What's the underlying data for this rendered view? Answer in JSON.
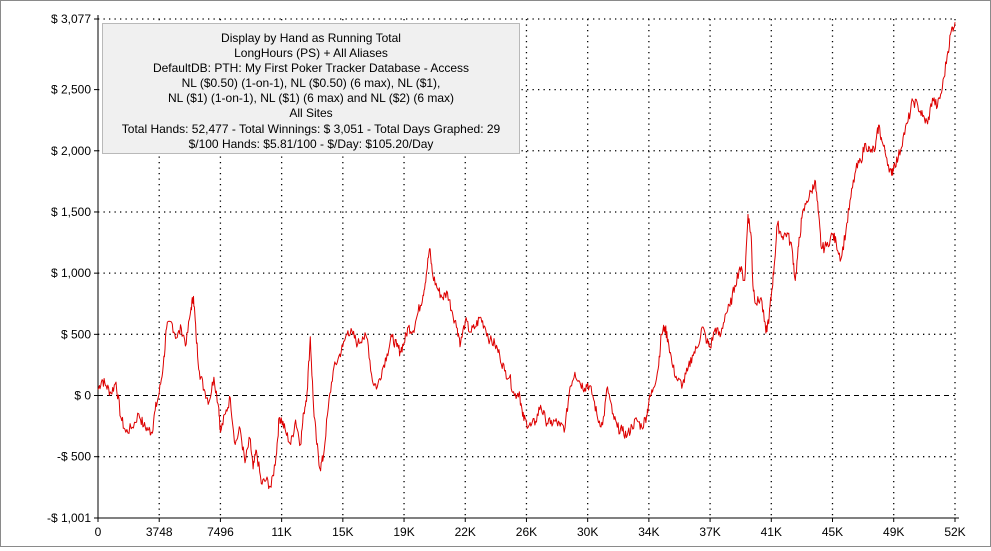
{
  "chart_data": {
    "type": "line",
    "title_lines": [
      "Display by Hand as Running Total",
      "LongHours (PS) + All Aliases",
      "DefaultDB: PTH: My First Poker Tracker Database - Access",
      "NL ($0.50) (1-on-1), NL ($0.50) (6 max), NL ($1),",
      "NL ($1) (1-on-1), NL ($1) (6 max) and NL ($2) (6 max)",
      "All Sites",
      "Total Hands: 52,477 - Total Winnings: $ 3,051 - Total Days Graphed: 29",
      "$/100 Hands: $5.81/100 - $/Day: $105.20/Day"
    ],
    "xlim": [
      0,
      52477
    ],
    "ylim": [
      -1001,
      3077
    ],
    "x_ticks": [
      {
        "value": 0,
        "label": "0"
      },
      {
        "value": 3748,
        "label": "3748"
      },
      {
        "value": 7496,
        "label": "7496"
      },
      {
        "value": 11244,
        "label": "11K"
      },
      {
        "value": 14992,
        "label": "15K"
      },
      {
        "value": 18740,
        "label": "19K"
      },
      {
        "value": 22488,
        "label": "22K"
      },
      {
        "value": 26236,
        "label": "26K"
      },
      {
        "value": 29984,
        "label": "30K"
      },
      {
        "value": 33732,
        "label": "34K"
      },
      {
        "value": 37480,
        "label": "37K"
      },
      {
        "value": 41228,
        "label": "41K"
      },
      {
        "value": 44976,
        "label": "45K"
      },
      {
        "value": 48724,
        "label": "49K"
      },
      {
        "value": 52477,
        "label": "52K"
      }
    ],
    "y_ticks": [
      {
        "value": 3077,
        "label": "$ 3,077"
      },
      {
        "value": 2500,
        "label": "$ 2,500"
      },
      {
        "value": 2000,
        "label": "$ 2,000"
      },
      {
        "value": 1500,
        "label": "$ 1,500"
      },
      {
        "value": 1000,
        "label": "$ 1,000"
      },
      {
        "value": 500,
        "label": "$ 500"
      },
      {
        "value": 0,
        "label": "$ 0"
      },
      {
        "value": -500,
        "label": "-$ 500"
      },
      {
        "value": -1001,
        "label": "-$ 1,001"
      }
    ],
    "grid": true,
    "zero_line": "dashed",
    "series": [
      {
        "color": "#dd0000",
        "points": [
          [
            0,
            50
          ],
          [
            250,
            130
          ],
          [
            500,
            80
          ],
          [
            800,
            20
          ],
          [
            1100,
            110
          ],
          [
            1400,
            -180
          ],
          [
            1700,
            -300
          ],
          [
            2100,
            -260
          ],
          [
            2500,
            -150
          ],
          [
            2800,
            -250
          ],
          [
            3100,
            -280
          ],
          [
            3300,
            -300
          ],
          [
            3500,
            -120
          ],
          [
            3748,
            20
          ],
          [
            4000,
            250
          ],
          [
            4200,
            550
          ],
          [
            4500,
            600
          ],
          [
            4800,
            470
          ],
          [
            5100,
            550
          ],
          [
            5400,
            420
          ],
          [
            5700,
            720
          ],
          [
            5850,
            810
          ],
          [
            6000,
            500
          ],
          [
            6200,
            200
          ],
          [
            6500,
            50
          ],
          [
            6800,
            -50
          ],
          [
            7100,
            150
          ],
          [
            7400,
            -100
          ],
          [
            7496,
            -300
          ],
          [
            7800,
            -150
          ],
          [
            8100,
            -20
          ],
          [
            8400,
            -400
          ],
          [
            8700,
            -270
          ],
          [
            9000,
            -550
          ],
          [
            9300,
            -350
          ],
          [
            9500,
            -600
          ],
          [
            9700,
            -450
          ],
          [
            10000,
            -720
          ],
          [
            10300,
            -690
          ],
          [
            10600,
            -750
          ],
          [
            10900,
            -500
          ],
          [
            11100,
            -180
          ],
          [
            11244,
            -200
          ],
          [
            11500,
            -300
          ],
          [
            11800,
            -400
          ],
          [
            12100,
            -200
          ],
          [
            12400,
            -400
          ],
          [
            12600,
            -140
          ],
          [
            12800,
            20
          ],
          [
            13000,
            480
          ],
          [
            13200,
            -100
          ],
          [
            13400,
            -400
          ],
          [
            13600,
            -600
          ],
          [
            13800,
            -500
          ],
          [
            14100,
            -100
          ],
          [
            14400,
            200
          ],
          [
            14700,
            300
          ],
          [
            14992,
            400
          ],
          [
            15300,
            530
          ],
          [
            15600,
            500
          ],
          [
            15900,
            420
          ],
          [
            16200,
            480
          ],
          [
            16500,
            460
          ],
          [
            16800,
            120
          ],
          [
            17100,
            70
          ],
          [
            17400,
            210
          ],
          [
            17700,
            340
          ],
          [
            18000,
            480
          ],
          [
            18300,
            400
          ],
          [
            18500,
            360
          ],
          [
            18740,
            430
          ],
          [
            19000,
            560
          ],
          [
            19300,
            530
          ],
          [
            19600,
            680
          ],
          [
            19900,
            820
          ],
          [
            20100,
            990
          ],
          [
            20300,
            1200
          ],
          [
            20500,
            980
          ],
          [
            20800,
            870
          ],
          [
            21100,
            800
          ],
          [
            21400,
            840
          ],
          [
            21700,
            680
          ],
          [
            22000,
            550
          ],
          [
            22200,
            420
          ],
          [
            22488,
            610
          ],
          [
            22800,
            520
          ],
          [
            23100,
            560
          ],
          [
            23400,
            640
          ],
          [
            23700,
            560
          ],
          [
            24000,
            450
          ],
          [
            24300,
            420
          ],
          [
            24600,
            330
          ],
          [
            24900,
            200
          ],
          [
            25200,
            150
          ],
          [
            25500,
            0
          ],
          [
            25800,
            30
          ],
          [
            26000,
            -170
          ],
          [
            26236,
            -220
          ],
          [
            26500,
            -250
          ],
          [
            26800,
            -210
          ],
          [
            27100,
            -80
          ],
          [
            27400,
            -200
          ],
          [
            27700,
            -230
          ],
          [
            28000,
            -210
          ],
          [
            28300,
            -250
          ],
          [
            28600,
            -260
          ],
          [
            28900,
            70
          ],
          [
            29200,
            190
          ],
          [
            29500,
            110
          ],
          [
            29800,
            60
          ],
          [
            29984,
            100
          ],
          [
            30300,
            0
          ],
          [
            30600,
            -190
          ],
          [
            30900,
            -240
          ],
          [
            31200,
            70
          ],
          [
            31500,
            -150
          ],
          [
            31800,
            -260
          ],
          [
            32100,
            -290
          ],
          [
            32400,
            -330
          ],
          [
            32700,
            -250
          ],
          [
            33000,
            -200
          ],
          [
            33300,
            -260
          ],
          [
            33600,
            -160
          ],
          [
            33732,
            -50
          ],
          [
            34000,
            60
          ],
          [
            34300,
            220
          ],
          [
            34500,
            500
          ],
          [
            34700,
            560
          ],
          [
            34900,
            460
          ],
          [
            35200,
            230
          ],
          [
            35500,
            120
          ],
          [
            35800,
            90
          ],
          [
            36100,
            200
          ],
          [
            36400,
            330
          ],
          [
            36700,
            390
          ],
          [
            37000,
            560
          ],
          [
            37300,
            440
          ],
          [
            37480,
            390
          ],
          [
            37800,
            550
          ],
          [
            38100,
            480
          ],
          [
            38400,
            660
          ],
          [
            38700,
            730
          ],
          [
            39000,
            900
          ],
          [
            39300,
            1050
          ],
          [
            39600,
            940
          ],
          [
            39800,
            1480
          ],
          [
            40000,
            1300
          ],
          [
            40100,
            900
          ],
          [
            40300,
            750
          ],
          [
            40600,
            800
          ],
          [
            40900,
            510
          ],
          [
            41100,
            650
          ],
          [
            41228,
            820
          ],
          [
            41400,
            1050
          ],
          [
            41600,
            1400
          ],
          [
            41900,
            1300
          ],
          [
            42200,
            1330
          ],
          [
            42500,
            1200
          ],
          [
            42700,
            940
          ],
          [
            42900,
            1220
          ],
          [
            43100,
            1450
          ],
          [
            43400,
            1590
          ],
          [
            43700,
            1670
          ],
          [
            43900,
            1760
          ],
          [
            44100,
            1500
          ],
          [
            44300,
            1200
          ],
          [
            44600,
            1220
          ],
          [
            44976,
            1320
          ],
          [
            45200,
            1250
          ],
          [
            45500,
            1120
          ],
          [
            45800,
            1350
          ],
          [
            46100,
            1620
          ],
          [
            46400,
            1840
          ],
          [
            46700,
            1920
          ],
          [
            47000,
            2060
          ],
          [
            47300,
            1990
          ],
          [
            47600,
            2020
          ],
          [
            47800,
            2210
          ],
          [
            48000,
            2080
          ],
          [
            48300,
            1940
          ],
          [
            48600,
            1800
          ],
          [
            48724,
            1880
          ],
          [
            49000,
            1940
          ],
          [
            49300,
            2110
          ],
          [
            49600,
            2240
          ],
          [
            49900,
            2410
          ],
          [
            50200,
            2370
          ],
          [
            50500,
            2280
          ],
          [
            50800,
            2220
          ],
          [
            51100,
            2430
          ],
          [
            51400,
            2360
          ],
          [
            51700,
            2510
          ],
          [
            52000,
            2780
          ],
          [
            52250,
            2980
          ],
          [
            52477,
            3051
          ]
        ]
      }
    ]
  }
}
